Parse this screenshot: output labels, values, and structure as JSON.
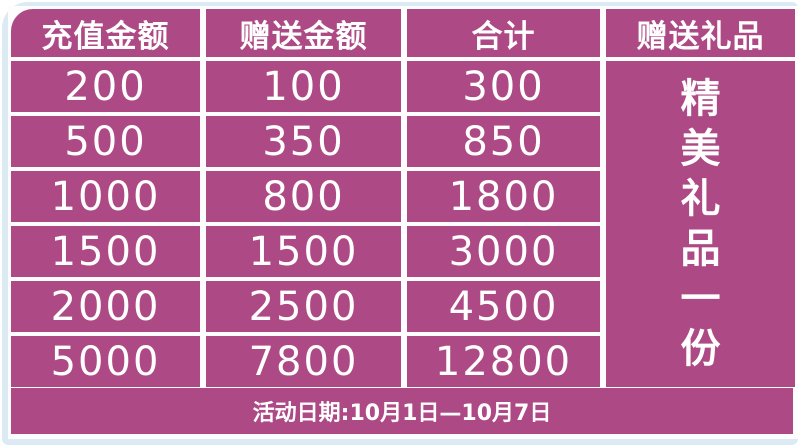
{
  "colors": {
    "accent": "#ad4a85",
    "background": "#dcebf3",
    "text": "#ffffff"
  },
  "headers": [
    "充值金额",
    "赠送金额",
    "合计",
    "赠送礼品"
  ],
  "rows": [
    [
      "200",
      "100",
      "300"
    ],
    [
      "500",
      "350",
      "850"
    ],
    [
      "1000",
      "800",
      "1800"
    ],
    [
      "1500",
      "1500",
      "3000"
    ],
    [
      "2000",
      "2500",
      "4500"
    ],
    [
      "5000",
      "7800",
      "12800"
    ]
  ],
  "gift": [
    "精",
    "美",
    "礼",
    "品",
    "一",
    "份"
  ],
  "footer": "活动日期:10月1日—10月7日"
}
